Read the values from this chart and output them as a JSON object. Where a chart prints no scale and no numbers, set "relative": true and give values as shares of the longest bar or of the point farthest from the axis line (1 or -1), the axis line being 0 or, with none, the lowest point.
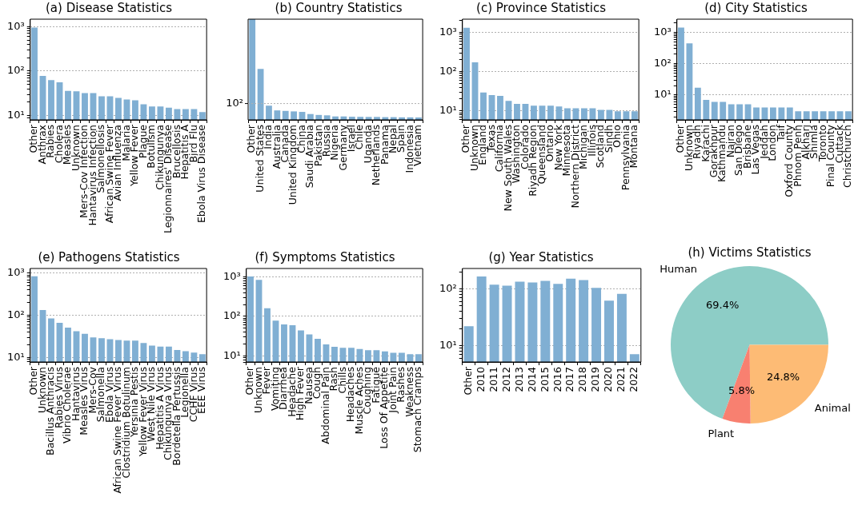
{
  "chart_data": [
    {
      "type": "bar",
      "title": "(a) Disease Statistics",
      "color": "#80afd3",
      "log": true,
      "grid": "y",
      "legend": false,
      "categories": [
        "Other",
        "Anthrax",
        "Rabies",
        "Cholera",
        "Measles",
        "Unknown",
        "Mers-Cov Infection",
        "Hantavirus Infection",
        "Salmonellosis",
        "African Swine Fever",
        "Avian Influenza",
        "Malaria",
        "Yellow Fever",
        "Plague",
        "Botulism",
        "Chikungunya",
        "Legionnaires' Disease",
        "Brucellosis",
        "Hepatitis A",
        "Bird Flu",
        "Ebola Virus Disease"
      ],
      "values": [
        955,
        78,
        63,
        56,
        36,
        35,
        32,
        32,
        27,
        27,
        25,
        23,
        22,
        18,
        16,
        16,
        15,
        14,
        14,
        14,
        12
      ],
      "ylim": [
        8,
        1470
      ],
      "yticks": [
        {
          "value": 9,
          "label": null
        },
        {
          "value": 10,
          "label": "10¹"
        },
        {
          "value": 20,
          "label": null
        },
        {
          "value": 30,
          "label": null
        },
        {
          "value": 40,
          "label": null
        },
        {
          "value": 50,
          "label": null
        },
        {
          "value": 60,
          "label": null
        },
        {
          "value": 70,
          "label": null
        },
        {
          "value": 80,
          "label": null
        },
        {
          "value": 90,
          "label": null
        },
        {
          "value": 100,
          "label": "10²"
        },
        {
          "value": 200,
          "label": null
        },
        {
          "value": 300,
          "label": null
        },
        {
          "value": 400,
          "label": null
        },
        {
          "value": 500,
          "label": null
        },
        {
          "value": 600,
          "label": null
        },
        {
          "value": 700,
          "label": null
        },
        {
          "value": 800,
          "label": null
        },
        {
          "value": 900,
          "label": null
        },
        {
          "value": 1000,
          "label": "10³"
        }
      ]
    },
    {
      "type": "bar",
      "title": "(b) Country Statistics",
      "color": "#80afd3",
      "grid": "y",
      "legend": false,
      "categories": [
        "Other",
        "United States",
        "India",
        "Australia",
        "Canada",
        "United Kingdom",
        "China",
        "Saudi Arabia",
        "Pakistan",
        "Russia",
        "Nigeria",
        "Germany",
        "Israel",
        "Chile",
        "Uganda",
        "Netherlands",
        "Panama",
        "Nepal",
        "Spain",
        "Indonesia",
        "Vietnam"
      ],
      "relative": true,
      "values": [
        1,
        0.506,
        0.141,
        0.094,
        0.089,
        0.084,
        0.079,
        0.058,
        0.049,
        0.045,
        0.034,
        0.034,
        0.031,
        0.03,
        0.029,
        0.029,
        0.027,
        0.027,
        0.025,
        0.025,
        0.024
      ],
      "ref_lines": [
        {
          "axis": "y",
          "value": 0.162,
          "line_style": "dotted",
          "color": "#b0b0b0"
        }
      ],
      "annotations": [
        "10²"
      ]
    },
    {
      "type": "bar",
      "title": "(c) Province Statistics",
      "color": "#80afd3",
      "log": true,
      "grid": "y",
      "legend": false,
      "categories": [
        "Other",
        "Unknown",
        "England",
        "Texas",
        "California",
        "New South Wales",
        "Washington",
        "Colorado",
        "Riyadh Region",
        "Queensland",
        "Ontario",
        "New York",
        "Minnesota",
        "Northern District",
        "Michigan",
        "Illinois",
        "Scotland",
        "Sindh",
        "Ohio",
        "Pennsylvania",
        "Montana"
      ],
      "values": [
        1320,
        172,
        29.5,
        25.4,
        24,
        18,
        15,
        15,
        13.6,
        13.6,
        13.6,
        13,
        11.7,
        11.7,
        11.7,
        11.7,
        10.6,
        10.6,
        9.8,
        9.8,
        9.8
      ],
      "ylim": [
        5.9,
        2180
      ],
      "yticks": [
        {
          "value": 6,
          "label": null
        },
        {
          "value": 7,
          "label": null
        },
        {
          "value": 8,
          "label": null
        },
        {
          "value": 9,
          "label": null
        },
        {
          "value": 10,
          "label": "10¹"
        },
        {
          "value": 20,
          "label": null
        },
        {
          "value": 30,
          "label": null
        },
        {
          "value": 40,
          "label": null
        },
        {
          "value": 50,
          "label": null
        },
        {
          "value": 60,
          "label": null
        },
        {
          "value": 70,
          "label": null
        },
        {
          "value": 80,
          "label": null
        },
        {
          "value": 90,
          "label": null
        },
        {
          "value": 100,
          "label": "10²"
        },
        {
          "value": 200,
          "label": null
        },
        {
          "value": 300,
          "label": null
        },
        {
          "value": 400,
          "label": null
        },
        {
          "value": 500,
          "label": null
        },
        {
          "value": 600,
          "label": null
        },
        {
          "value": 700,
          "label": null
        },
        {
          "value": 800,
          "label": null
        },
        {
          "value": 900,
          "label": null
        },
        {
          "value": 1000,
          "label": "10³"
        },
        {
          "value": 2000,
          "label": null
        }
      ]
    },
    {
      "type": "bar",
      "title": "(d) City Statistics",
      "color": "#80afd3",
      "log": true,
      "grid": "y",
      "legend": false,
      "categories": [
        "Other",
        "Unknown",
        "Riyadh",
        "Karachi",
        "Gorakhpur",
        "Kathmandu",
        "Najran",
        "San Diego",
        "Brisbane",
        "Las Vegas",
        "Jeddah",
        "London",
        "Taif",
        "Oxford County",
        "Phnom Penh",
        "Alkharj",
        "Shimla",
        "Toronto",
        "Pinal County",
        "Cuttack",
        "Christchurch"
      ],
      "values": [
        1420,
        446,
        17,
        7,
        6,
        6,
        5,
        5,
        5,
        4,
        4,
        4,
        4,
        4,
        3,
        3,
        3,
        3,
        3,
        3,
        3
      ],
      "ylim": [
        1.6,
        2630
      ],
      "yticks": [
        {
          "value": 2,
          "label": null
        },
        {
          "value": 3,
          "label": null
        },
        {
          "value": 4,
          "label": null
        },
        {
          "value": 5,
          "label": null
        },
        {
          "value": 6,
          "label": null
        },
        {
          "value": 7,
          "label": null
        },
        {
          "value": 8,
          "label": null
        },
        {
          "value": 9,
          "label": null
        },
        {
          "value": 10,
          "label": "10¹"
        },
        {
          "value": 20,
          "label": null
        },
        {
          "value": 30,
          "label": null
        },
        {
          "value": 40,
          "label": null
        },
        {
          "value": 50,
          "label": null
        },
        {
          "value": 60,
          "label": null
        },
        {
          "value": 70,
          "label": null
        },
        {
          "value": 80,
          "label": null
        },
        {
          "value": 90,
          "label": null
        },
        {
          "value": 100,
          "label": "10²"
        },
        {
          "value": 200,
          "label": null
        },
        {
          "value": 300,
          "label": null
        },
        {
          "value": 400,
          "label": null
        },
        {
          "value": 500,
          "label": null
        },
        {
          "value": 600,
          "label": null
        },
        {
          "value": 700,
          "label": null
        },
        {
          "value": 800,
          "label": null
        },
        {
          "value": 900,
          "label": null
        },
        {
          "value": 1000,
          "label": "10³"
        },
        {
          "value": 2000,
          "label": null
        }
      ]
    },
    {
      "type": "bar",
      "title": "(e) Pathogens Statistics",
      "color": "#80afd3",
      "log": true,
      "grid": "y",
      "legend": false,
      "categories": [
        "Other",
        "Unknown",
        "Bacillus Anthracis",
        "Rabies Virus",
        "Vibrio Cholerae",
        "Hantavirus",
        "Measles Virus",
        "Mers-Cov",
        "Salmonella",
        "Ebola Virus",
        "African Swine Fever Virus",
        "Clostridium Botulinum",
        "Yersinia Pestis",
        "Yellow Fever Virus",
        "West Nile Virus",
        "Hepatitis A Virus",
        "Chikungunya Virus",
        "Bordetella Pertussis",
        "Legionella",
        "CCHF Virus",
        "EEE Virus"
      ],
      "values": [
        841,
        133,
        84,
        66,
        51,
        42,
        36.5,
        30,
        28.6,
        27,
        26,
        25,
        25,
        22,
        19,
        18,
        18,
        15,
        14,
        13,
        12
      ],
      "ylim": [
        7.8,
        1290
      ],
      "yticks": [
        {
          "value": 8,
          "label": null
        },
        {
          "value": 9,
          "label": null
        },
        {
          "value": 10,
          "label": "10¹"
        },
        {
          "value": 20,
          "label": null
        },
        {
          "value": 30,
          "label": null
        },
        {
          "value": 40,
          "label": null
        },
        {
          "value": 50,
          "label": null
        },
        {
          "value": 60,
          "label": null
        },
        {
          "value": 70,
          "label": null
        },
        {
          "value": 80,
          "label": null
        },
        {
          "value": 90,
          "label": null
        },
        {
          "value": 100,
          "label": "10²"
        },
        {
          "value": 200,
          "label": null
        },
        {
          "value": 300,
          "label": null
        },
        {
          "value": 400,
          "label": null
        },
        {
          "value": 500,
          "label": null
        },
        {
          "value": 600,
          "label": null
        },
        {
          "value": 700,
          "label": null
        },
        {
          "value": 800,
          "label": null
        },
        {
          "value": 900,
          "label": null
        },
        {
          "value": 1000,
          "label": "10³"
        }
      ]
    },
    {
      "type": "bar",
      "title": "(f) Symptoms Statistics",
      "color": "#80afd3",
      "log": true,
      "grid": "y",
      "legend": false,
      "categories": [
        "Other",
        "Unknown",
        "Fever",
        "Vomiting",
        "Diarrhea",
        "Headache",
        "High Fever",
        "Nausea",
        "Cough",
        "Abdominal Pain",
        "Rash",
        "Chills",
        "Headaches",
        "Muscle Aches",
        "Coughing",
        "Fatigue",
        "Loss Of Appetite",
        "Joint Pain",
        "Rashes",
        "Weakness",
        "Stomach Cramps"
      ],
      "values": [
        1030,
        844,
        161,
        78,
        63,
        60,
        44,
        35,
        27,
        19.5,
        17,
        16,
        16,
        15,
        14,
        14,
        13,
        12,
        12,
        11,
        11
      ],
      "ylim": [
        7,
        1640
      ],
      "yticks": [
        {
          "value": 7,
          "label": null
        },
        {
          "value": 8,
          "label": null
        },
        {
          "value": 9,
          "label": null
        },
        {
          "value": 10,
          "label": "10¹"
        },
        {
          "value": 20,
          "label": null
        },
        {
          "value": 30,
          "label": null
        },
        {
          "value": 40,
          "label": null
        },
        {
          "value": 50,
          "label": null
        },
        {
          "value": 60,
          "label": null
        },
        {
          "value": 70,
          "label": null
        },
        {
          "value": 80,
          "label": null
        },
        {
          "value": 90,
          "label": null
        },
        {
          "value": 100,
          "label": "10²"
        },
        {
          "value": 200,
          "label": null
        },
        {
          "value": 300,
          "label": null
        },
        {
          "value": 400,
          "label": null
        },
        {
          "value": 500,
          "label": null
        },
        {
          "value": 600,
          "label": null
        },
        {
          "value": 700,
          "label": null
        },
        {
          "value": 800,
          "label": null
        },
        {
          "value": 900,
          "label": null
        },
        {
          "value": 1000,
          "label": "10³"
        }
      ]
    },
    {
      "type": "bar",
      "title": "(g) Year Statistics",
      "color": "#80afd3",
      "log": true,
      "grid": "y",
      "legend": false,
      "categories": [
        "Other",
        "2010",
        "2011",
        "2012",
        "2013",
        "2014",
        "2015",
        "2016",
        "2017",
        "2018",
        "2019",
        "2020",
        "2021",
        "2022"
      ],
      "values": [
        22,
        167,
        119,
        115,
        135,
        131,
        139,
        123,
        153,
        144,
        105,
        62,
        82,
        7
      ],
      "ylim": [
        5.1,
        231
      ],
      "yticks": [
        {
          "value": 6,
          "label": null
        },
        {
          "value": 7,
          "label": null
        },
        {
          "value": 8,
          "label": null
        },
        {
          "value": 9,
          "label": null
        },
        {
          "value": 10,
          "label": "10¹"
        },
        {
          "value": 20,
          "label": null
        },
        {
          "value": 30,
          "label": null
        },
        {
          "value": 40,
          "label": null
        },
        {
          "value": 50,
          "label": null
        },
        {
          "value": 60,
          "label": null
        },
        {
          "value": 70,
          "label": null
        },
        {
          "value": 80,
          "label": null
        },
        {
          "value": 90,
          "label": null
        },
        {
          "value": 100,
          "label": "10²"
        },
        {
          "value": 200,
          "label": null
        }
      ]
    },
    {
      "type": "pie",
      "title": "(h) Victims Statistics",
      "legend": false,
      "categories": [
        "Human",
        "Animal",
        "Plant"
      ],
      "values": [
        69.4,
        24.8,
        5.8
      ],
      "colors": [
        "#8dcdc6",
        "#fdbb75",
        "#f88070"
      ],
      "value_labels": [
        "69.4%",
        "24.8%",
        "5.8%"
      ]
    }
  ]
}
